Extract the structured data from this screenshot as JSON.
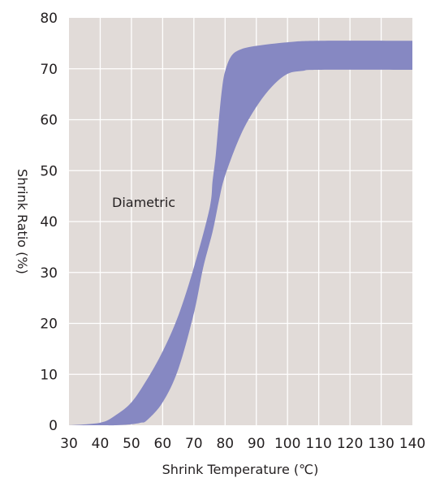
{
  "chart_data": {
    "type": "area",
    "xlabel": "Shrink Temperature (℃)",
    "ylabel": "Shrink Ratio (%)",
    "xlim": [
      30,
      140
    ],
    "ylim": [
      0,
      80
    ],
    "x_ticks": [
      "30",
      "40",
      "50",
      "60",
      "70",
      "80",
      "90",
      "100",
      "110",
      "120",
      "130",
      "140"
    ],
    "y_ticks": [
      "0",
      "10",
      "20",
      "30",
      "40",
      "50",
      "60",
      "70",
      "80"
    ],
    "grid": true,
    "colors": {
      "plot_bg": "#e1dbd8",
      "grid": "#ffffff",
      "band": "#8688c2"
    },
    "annotations": [
      {
        "text": "Diametric"
      }
    ],
    "series": [
      {
        "type": "band",
        "upper": [
          [
            30,
            0
          ],
          [
            40,
            0.5
          ],
          [
            45,
            2
          ],
          [
            50,
            4.5
          ],
          [
            55,
            9
          ],
          [
            60,
            14.5
          ],
          [
            65,
            21.5
          ],
          [
            70,
            31
          ],
          [
            75,
            42.5
          ],
          [
            76,
            48
          ],
          [
            77,
            53
          ],
          [
            78,
            60
          ],
          [
            79,
            66
          ],
          [
            80,
            69.5
          ],
          [
            82,
            72.5
          ],
          [
            85,
            73.8
          ],
          [
            90,
            74.5
          ],
          [
            100,
            75.2
          ],
          [
            110,
            75.5
          ],
          [
            140,
            75.5
          ]
        ],
        "lower": [
          [
            30,
            0
          ],
          [
            40,
            0
          ],
          [
            45,
            0
          ],
          [
            50,
            0.2
          ],
          [
            53,
            0.5
          ],
          [
            55,
            1
          ],
          [
            60,
            4.5
          ],
          [
            65,
            11
          ],
          [
            70,
            22
          ],
          [
            73,
            31
          ],
          [
            76,
            38
          ],
          [
            78,
            44
          ],
          [
            80,
            49
          ],
          [
            85,
            57
          ],
          [
            90,
            62.5
          ],
          [
            95,
            66.5
          ],
          [
            100,
            69
          ],
          [
            105,
            69.6
          ],
          [
            110,
            69.8
          ],
          [
            140,
            69.8
          ]
        ]
      }
    ]
  }
}
